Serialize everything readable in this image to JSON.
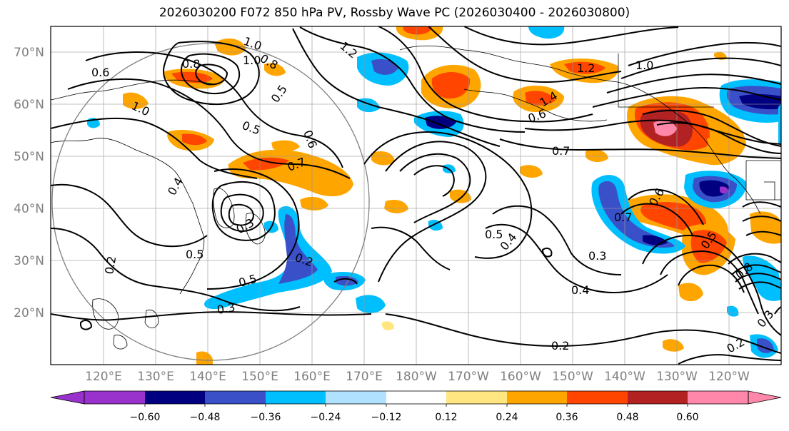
{
  "title": "2026030200 F072 850 hPa PV, Rossby Wave PC (2026030400 - 2026030800)",
  "map": {
    "lat_labels": [
      "70°N",
      "60°N",
      "50°N",
      "40°N",
      "30°N",
      "20°N"
    ],
    "lon_labels": [
      "120°E",
      "130°E",
      "140°E",
      "150°E",
      "160°E",
      "170°E",
      "180°W",
      "170°W",
      "160°W",
      "150°W",
      "140°W",
      "130°W",
      "120°W"
    ],
    "contour_labels": [
      "1.0",
      "0.8",
      "0.6",
      "1.2",
      "1.0",
      "0.8",
      "1.0",
      "0.5",
      "0.6",
      "0.5",
      "0.7",
      "0.4",
      "0.5",
      "0.3",
      "0.2",
      "0.5",
      "0.3",
      "0.2",
      "0.7",
      "0.5",
      "0.4",
      "0.3",
      "0.4",
      "0.2",
      "0.6",
      "0.7",
      "0.5",
      "0.8",
      "0.3",
      "0.2",
      "1.2",
      "1.0",
      "1.4",
      "0.6"
    ]
  },
  "colorbar": {
    "tick_labels": [
      "−0.60",
      "−0.48",
      "−0.36",
      "−0.24",
      "−0.12",
      "0.12",
      "0.24",
      "0.36",
      "0.48",
      "0.60"
    ],
    "colors": [
      "#9932CC",
      "#000080",
      "#3A50C8",
      "#00BFFF",
      "#B0E2FF",
      "#FFFFFF",
      "#FFE680",
      "#FFA500",
      "#FF4500",
      "#B22222",
      "#FF88AA",
      "#FF88AA"
    ]
  }
}
